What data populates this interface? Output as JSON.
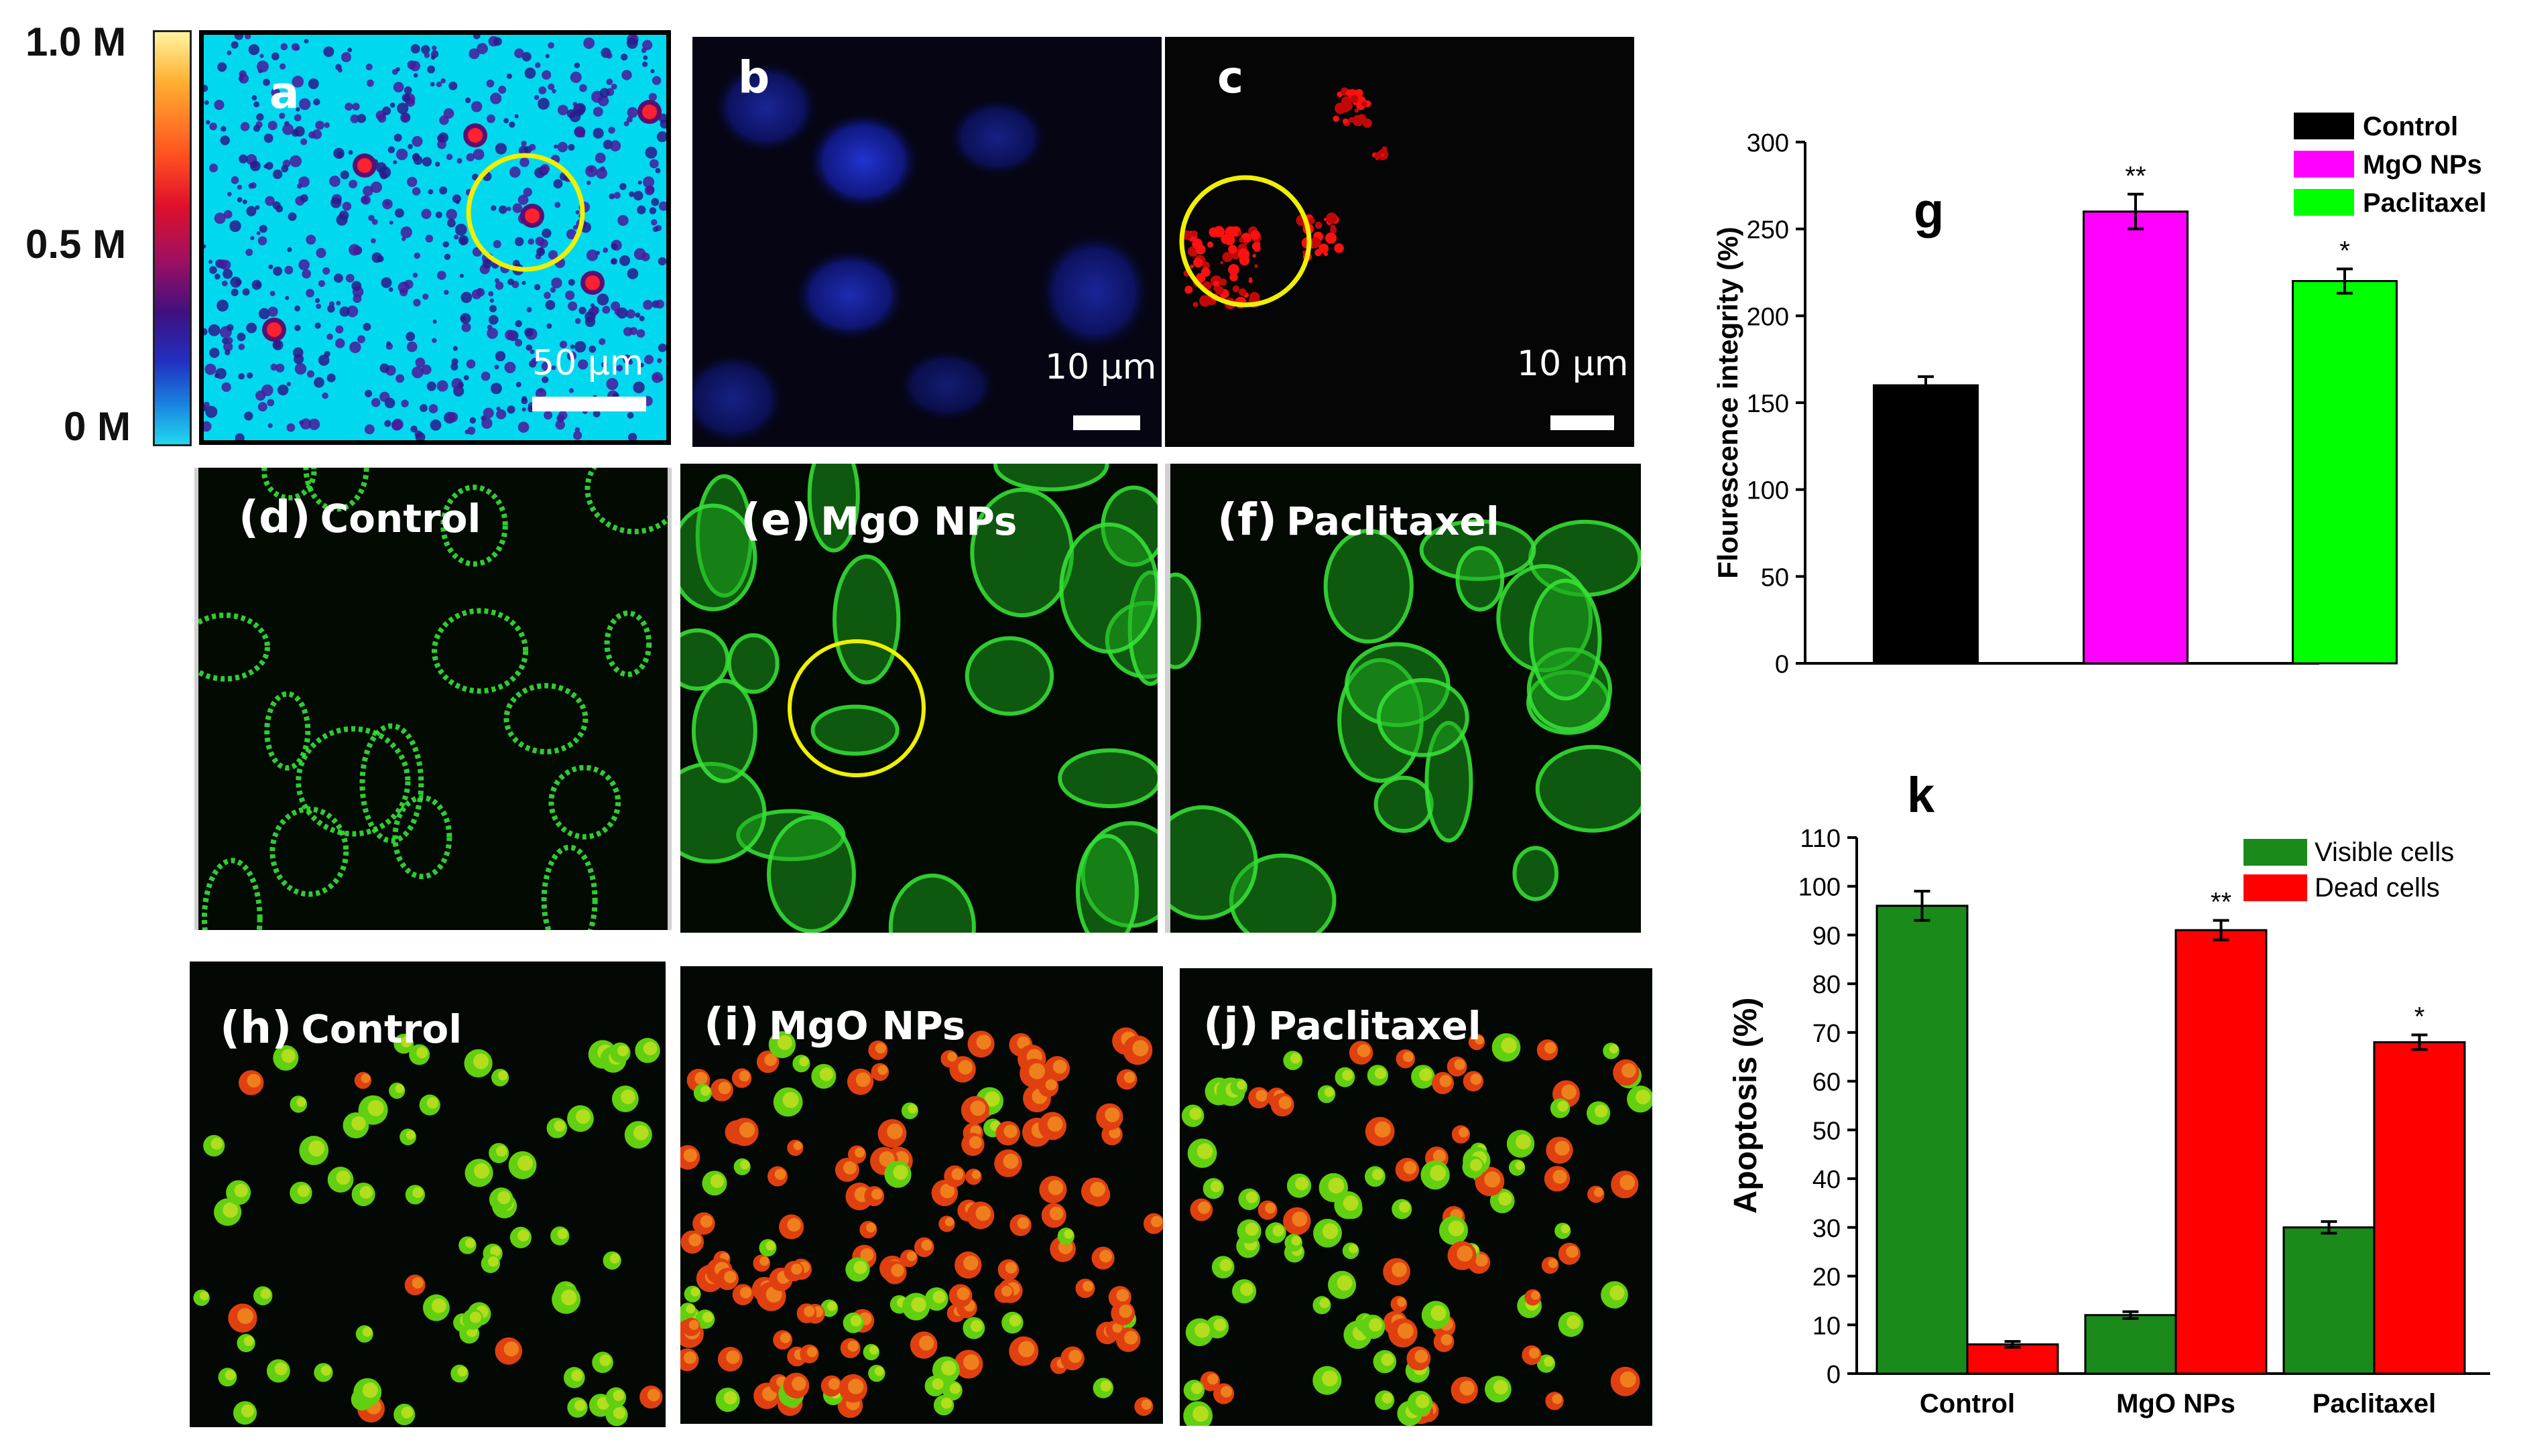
{
  "colorbar": {
    "max_label": "1.0 M",
    "mid_label": "0.5 M",
    "min_label": "0 M"
  },
  "panels": {
    "a": {
      "letter": "a",
      "scale": "50 μm"
    },
    "b": {
      "letter": "b",
      "scale": "10 μm"
    },
    "c": {
      "letter": "c",
      "scale": "10 μm"
    },
    "d": {
      "letter": "(d)",
      "label": "Control"
    },
    "e": {
      "letter": "(e)",
      "label": "MgO NPs"
    },
    "f": {
      "letter": "(f)",
      "label": "Paclitaxel"
    },
    "h": {
      "letter": "(h)",
      "label": "Control"
    },
    "i": {
      "letter": "(i)",
      "label": "MgO NPs"
    },
    "j": {
      "letter": "(j)",
      "label": "Paclitaxel"
    }
  },
  "colors": {
    "control": "#000000",
    "mgo": "#ff00ff",
    "paclitaxel": "#00ff00",
    "visible": "#1a8a1a",
    "dead": "#ff0000",
    "colormap_bg": "#00d8f0",
    "annotation_circle": "#f0f000"
  },
  "chart_data": [
    {
      "type": "bar",
      "panel_label": "g",
      "title": "",
      "ylabel": "Flourescence integrity (%)",
      "xlabel": "",
      "ylim": [
        0,
        300
      ],
      "yticks": [
        0,
        50,
        100,
        150,
        200,
        250,
        300
      ],
      "categories": [
        "Control",
        "MgO NPs",
        "Paclitaxel"
      ],
      "show_category_labels": false,
      "values": [
        160,
        260,
        220
      ],
      "errors": [
        5,
        10,
        7
      ],
      "significance": [
        "",
        "**",
        "*"
      ],
      "legend": [
        "Control",
        "MgO NPs",
        "Paclitaxel"
      ],
      "legend_position": "top-right",
      "grid": false
    },
    {
      "type": "bar",
      "panel_label": "k",
      "title": "",
      "ylabel": "Apoptosis (%)",
      "xlabel": "",
      "ylim": [
        0,
        110
      ],
      "yticks": [
        0,
        10,
        20,
        30,
        40,
        50,
        60,
        70,
        80,
        90,
        100,
        110
      ],
      "categories": [
        "Control",
        "MgO NPs",
        "Paclitaxel"
      ],
      "series": [
        {
          "name": "Visible cells",
          "values": [
            96,
            12,
            30
          ],
          "errors": [
            3,
            0.7,
            1.2
          ],
          "significance": [
            "",
            "",
            ""
          ]
        },
        {
          "name": "Dead cells",
          "values": [
            6,
            91,
            68
          ],
          "errors": [
            0.6,
            2,
            1.5
          ],
          "significance": [
            "",
            "**",
            "*"
          ]
        }
      ],
      "legend_position": "top-right",
      "grid": false
    }
  ]
}
